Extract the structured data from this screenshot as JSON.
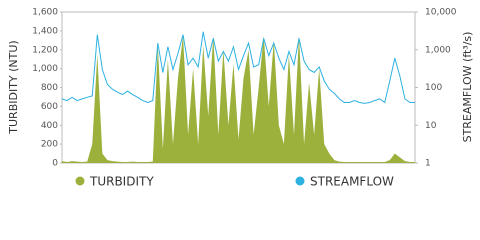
{
  "chart_data": {
    "type": "area_line",
    "y_label": "TURBIDITY (NTU)",
    "y2_label": "STREAMFLOW (ft³/s)",
    "categories": [
      null,
      null,
      null,
      null,
      null,
      null,
      null,
      null,
      null,
      null,
      null,
      null,
      null,
      null,
      null,
      null,
      null,
      null,
      null,
      null,
      null,
      null,
      null,
      null,
      null,
      null,
      null,
      null,
      null,
      null,
      null,
      null,
      null,
      null,
      null,
      null,
      null,
      null,
      null,
      null,
      null,
      null,
      null,
      null,
      null,
      null,
      null,
      null,
      null,
      null,
      null,
      null,
      null,
      null,
      null,
      null,
      null,
      null,
      null,
      null,
      null,
      null,
      null,
      null,
      null,
      null,
      null,
      null,
      null,
      null,
      null
    ],
    "series": [
      {
        "name": "TURBIDITY",
        "color": "#9bb13c",
        "values": [
          20,
          10,
          20,
          15,
          10,
          15,
          200,
          1150,
          100,
          30,
          20,
          15,
          10,
          10,
          15,
          10,
          10,
          10,
          15,
          1250,
          150,
          1100,
          200,
          900,
          1350,
          300,
          1000,
          200,
          1250,
          500,
          1350,
          300,
          1200,
          400,
          1050,
          250,
          900,
          1200,
          300,
          800,
          1350,
          600,
          1300,
          400,
          200,
          1150,
          300,
          1350,
          200,
          850,
          300,
          1000,
          200,
          100,
          30,
          15,
          10,
          10,
          10,
          10,
          10,
          10,
          10,
          10,
          10,
          30,
          100,
          60,
          20,
          10,
          10
        ]
      },
      {
        "name": "STREAMFLOW",
        "color": "#2cb1e1",
        "axis": "y2",
        "values": [
          50,
          45,
          55,
          45,
          50,
          55,
          60,
          2500,
          300,
          120,
          90,
          75,
          65,
          80,
          65,
          55,
          45,
          40,
          45,
          1500,
          250,
          1200,
          300,
          800,
          2500,
          400,
          600,
          350,
          3000,
          600,
          2000,
          500,
          900,
          500,
          1200,
          300,
          700,
          1500,
          350,
          400,
          2000,
          700,
          1500,
          600,
          300,
          900,
          400,
          2000,
          500,
          300,
          250,
          350,
          150,
          90,
          70,
          50,
          40,
          40,
          45,
          40,
          38,
          40,
          45,
          50,
          40,
          150,
          600,
          200,
          50,
          40,
          40
        ]
      }
    ],
    "ylim": [
      0,
      1600
    ],
    "yticks": [
      0,
      200,
      400,
      600,
      800,
      {
        "value": 1000,
        "label": "1,000"
      },
      {
        "value": 1200,
        "label": "1,200"
      },
      {
        "value": 1400,
        "label": "1,400"
      },
      {
        "value": 1600,
        "label": "1,600"
      }
    ],
    "y2lim": [
      1,
      10000
    ],
    "y2ticks": [
      1,
      10,
      100,
      {
        "value": 1000,
        "label": "1,000"
      },
      {
        "value": 10000,
        "label": "10,000"
      }
    ],
    "y2log": true
  }
}
